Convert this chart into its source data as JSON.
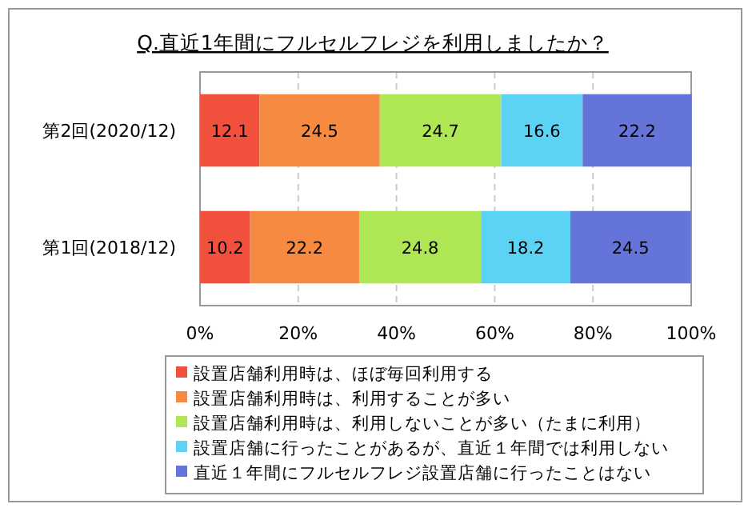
{
  "chart_data": {
    "type": "bar",
    "orientation": "horizontal",
    "stacked": true,
    "title": "Q.直近1年間にフルセルフレジを利用しましたか？",
    "categories": [
      "第2回(2020/12)",
      "第1回(2018/12)"
    ],
    "series": [
      {
        "name": "設置店舗利用時は、ほぼ毎回利用する",
        "color": "#f0503c",
        "values": [
          12.1,
          10.2
        ]
      },
      {
        "name": "設置店舗利用時は、利用することが多い",
        "color": "#f58a40",
        "values": [
          24.5,
          22.2
        ]
      },
      {
        "name": "設置店舗利用時は、利用しないことが多い（たまに利用）",
        "color": "#aee654",
        "values": [
          24.7,
          24.8
        ]
      },
      {
        "name": "設置店舗に行ったことがあるが、直近１年間では利用しない",
        "color": "#5cd2f4",
        "values": [
          16.6,
          18.2
        ]
      },
      {
        "name": "直近１年間にフルセルフレジ設置店舗に行ったことはない",
        "color": "#6474d8",
        "values": [
          22.2,
          24.5
        ]
      }
    ],
    "xlim": [
      0,
      100
    ],
    "xticks": [
      {
        "value": 0,
        "label": "0%"
      },
      {
        "value": 20,
        "label": "20%"
      },
      {
        "value": 40,
        "label": "40%"
      },
      {
        "value": 60,
        "label": "60%"
      },
      {
        "value": 80,
        "label": "80%"
      },
      {
        "value": 100,
        "label": "100%"
      }
    ],
    "grid": "x",
    "legend": "bottom",
    "data_labels": true
  }
}
